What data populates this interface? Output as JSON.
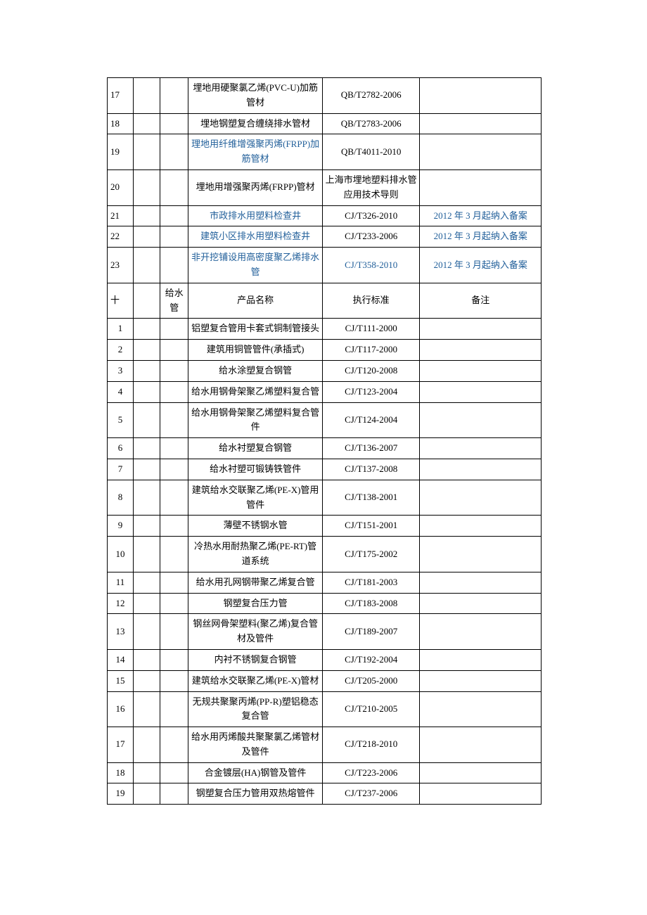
{
  "rows": [
    {
      "idx": "17",
      "name": "埋地用硬聚氯乙烯(PVC-U)加筋管材",
      "std": "QB/T2782-2006",
      "blue": false
    },
    {
      "idx": "18",
      "name": "埋地钢塑复合缠绕排水管材",
      "std": "QB/T2783-2006",
      "blue": false
    },
    {
      "idx": "19",
      "name": "理地用纤维增强聚丙烯(FRPP)加筋管材",
      "std": "QB/T4011-2010",
      "blue": true
    },
    {
      "idx": "20",
      "name": "埋地用增强聚丙烯(FRPP)管材",
      "std": "上海市埋地塑料排水管应用技术导则",
      "blue": false
    },
    {
      "idx": "21",
      "name": "市政排水用塑料检查井",
      "std": "CJ/T326-2010",
      "remark": "2012 年 3 月起纳入备案",
      "blue": true,
      "blueRemark": true
    },
    {
      "idx": "22",
      "name": "建筑小区排水用塑料检查井",
      "std": "CJ/T233-2006",
      "remark": "2012 年 3 月起纳入备案",
      "blue": true,
      "blueRemark": true
    },
    {
      "idx": "23",
      "name": "非开挖铺设用高密度聚乙烯排水管",
      "std": "CJ/T358-2010",
      "remark": "2012 年 3 月起纳入备案",
      "blue": true,
      "blueStd": true,
      "blueRemark": true
    }
  ],
  "header2": {
    "idx": "十",
    "category": "给水管",
    "nameCol": "产品名称",
    "stdCol": "执行标准",
    "remCol": "备注"
  },
  "rows2": [
    {
      "idx": "1",
      "name": "铝塑复合管用卡套式铜制管接头",
      "std": "CJ/T111-2000"
    },
    {
      "idx": "2",
      "name": "建筑用铜管管件(承插式)",
      "std": "CJ/T117-2000"
    },
    {
      "idx": "3",
      "name": "给水涂塑复合钢管",
      "std": "CJ/T120-2008"
    },
    {
      "idx": "4",
      "name": "给水用钢骨架聚乙烯塑料复合管",
      "std": "CJ/T123-2004"
    },
    {
      "idx": "5",
      "name": "给水用钢骨架聚乙烯塑料复合管件",
      "std": "CJ/T124-2004"
    },
    {
      "idx": "6",
      "name": "给水衬塑复合钢管",
      "std": "CJ/T136-2007"
    },
    {
      "idx": "7",
      "name": "给水衬塑可锻铸铁管件",
      "std": "CJ/T137-2008"
    },
    {
      "idx": "8",
      "name": "建筑给水交联聚乙烯(PE-X)管用管件",
      "std": "CJ/T138-2001"
    },
    {
      "idx": "9",
      "name": "薄壁不锈钢水管",
      "std": "CJ/T151-2001"
    },
    {
      "idx": "10",
      "name": "冷热水用耐热聚乙烯(PE-RT)管道系统",
      "std": "CJ/T175-2002"
    },
    {
      "idx": "11",
      "name": "给水用孔网钢带聚乙烯复合管",
      "std": "CJ/T181-2003"
    },
    {
      "idx": "12",
      "name": "钢塑复合压力管",
      "std": "CJ/T183-2008"
    },
    {
      "idx": "13",
      "name": "钢丝网骨架塑料(聚乙烯)复合管材及管件",
      "std": "CJ/T189-2007"
    },
    {
      "idx": "14",
      "name": "内衬不锈钢复合钢管",
      "std": "CJ/T192-2004"
    },
    {
      "idx": "15",
      "name": "建筑给水交联聚乙烯(PE-X)管材",
      "std": "CJ/T205-2000"
    },
    {
      "idx": "16",
      "name": "无规共聚聚丙烯(PP-R)塑铝稳态复合管",
      "std": "CJ/T210-2005"
    },
    {
      "idx": "17",
      "name": "给水用丙烯酸共聚聚氯乙烯管材及管件",
      "std": "CJ/T218-2010"
    },
    {
      "idx": "18",
      "name": "合金镀层(HA)钢管及管件",
      "std": "CJ/T223-2006"
    },
    {
      "idx": "19",
      "name": "钢塑复合压力管用双热熔管件",
      "std": "CJ/T237-2006"
    }
  ]
}
